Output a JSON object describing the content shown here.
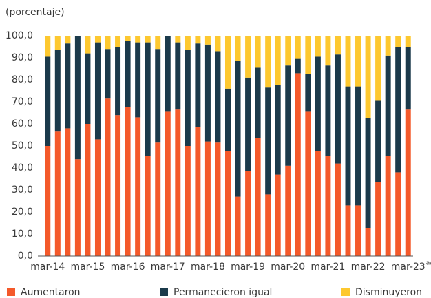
{
  "chart_data": {
    "type": "stacked_bar",
    "y_label": "(porcentaje)",
    "categories": [
      "mar-14",
      null,
      null,
      null,
      "mar-15",
      null,
      null,
      null,
      "mar-16",
      null,
      null,
      null,
      "mar-17",
      null,
      null,
      null,
      "mar-18",
      null,
      null,
      null,
      "mar-19",
      null,
      null,
      null,
      "mar-20",
      null,
      null,
      null,
      "mar-21",
      null,
      null,
      null,
      "mar-22",
      null,
      null,
      null,
      "mar-23"
    ],
    "x_label_note": "a/",
    "series": [
      {
        "name": "Aumentaron",
        "color": "#f4592a",
        "values": [
          50,
          56.5,
          58,
          44,
          60,
          53,
          71.5,
          64,
          67.5,
          63,
          45.5,
          51.5,
          65.5,
          66.5,
          50,
          58.5,
          52,
          51.5,
          47.5,
          27,
          38.5,
          53.5,
          28,
          37,
          41,
          83,
          65.5,
          47.5,
          45.5,
          42,
          23,
          23,
          12.5,
          33.5,
          45.5,
          38,
          66.5
        ]
      },
      {
        "name": "Permanecieron igual",
        "color": "#1b3a4b",
        "values": [
          40.5,
          37,
          38.5,
          56,
          32,
          44,
          22.5,
          31,
          30,
          34,
          51.5,
          42.5,
          34.5,
          30.5,
          43.5,
          38,
          44,
          41.5,
          28.5,
          61.5,
          42.5,
          32,
          48.5,
          40.5,
          45.5,
          6.5,
          17,
          43,
          41,
          49.5,
          54,
          54,
          50,
          37,
          45.5,
          57,
          28.5
        ]
      },
      {
        "name": "Disminuyeron",
        "color": "#fdc82f",
        "values": [
          9.5,
          6.5,
          3.5,
          0,
          8,
          3,
          6,
          5,
          2.5,
          3,
          3,
          6,
          0,
          3,
          6.5,
          3.5,
          4,
          7,
          24,
          11.5,
          19,
          14.5,
          23.5,
          22.5,
          13.5,
          10.5,
          17.5,
          9.5,
          13.5,
          8.5,
          23,
          23,
          37.5,
          29.5,
          9,
          5,
          5
        ]
      }
    ],
    "ylim": [
      0,
      100
    ],
    "yticks": [
      {
        "value": 0,
        "label": "0,0"
      },
      {
        "value": 10,
        "label": "10,0"
      },
      {
        "value": 20,
        "label": "20,0"
      },
      {
        "value": 30,
        "label": "30,0"
      },
      {
        "value": 40,
        "label": "40,0"
      },
      {
        "value": 50,
        "label": "50,0"
      },
      {
        "value": 60,
        "label": "60,0"
      },
      {
        "value": 70,
        "label": "70,0"
      },
      {
        "value": 80,
        "label": "80,0"
      },
      {
        "value": 90,
        "label": "90,0"
      },
      {
        "value": 100,
        "label": "100,0"
      }
    ],
    "grid": false,
    "legend": "bottom"
  }
}
